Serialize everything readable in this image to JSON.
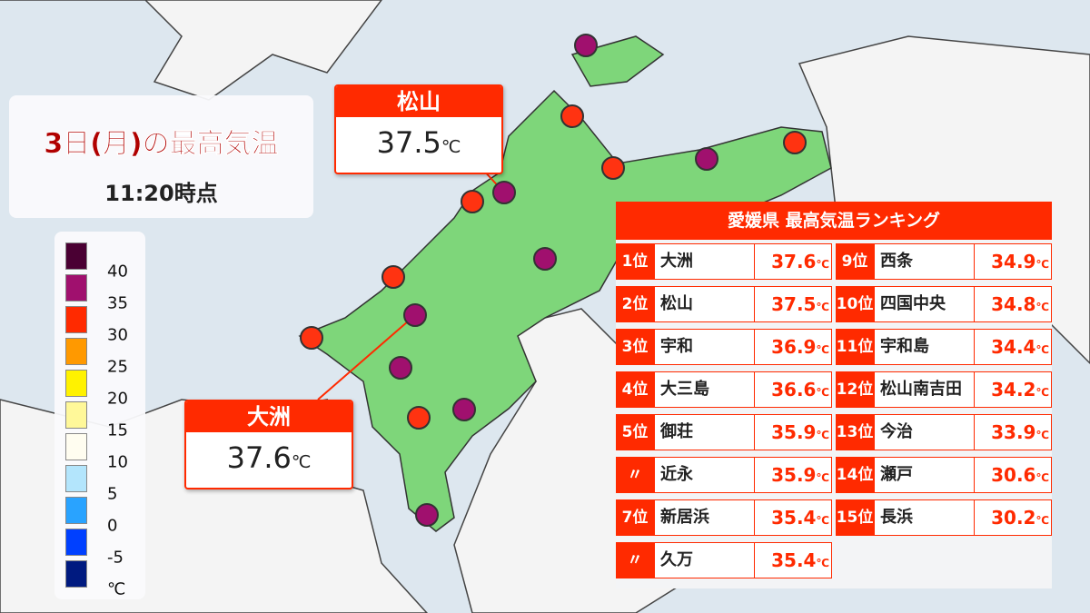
{
  "title": "3日(月)の最高気温",
  "subtitle": "11:20時点",
  "legend": {
    "colors": [
      "#4a0033",
      "#a0106e",
      "#ff2a00",
      "#ff9900",
      "#fff200",
      "#fff899",
      "#fffdf0",
      "#b3e5fc",
      "#29a3ff",
      "#0040ff",
      "#001a80"
    ],
    "labels": [
      40,
      35,
      30,
      25,
      20,
      15,
      10,
      5,
      0,
      -5
    ],
    "unit": "℃"
  },
  "callouts": [
    {
      "name": "松山",
      "value": 37.5,
      "unit": "℃"
    },
    {
      "name": "大洲",
      "value": 37.6,
      "unit": "℃"
    }
  ],
  "ranking": {
    "title": "愛媛県 最高気温ランキング",
    "rows": [
      {
        "rank": "1位",
        "name": "大洲",
        "value": 37.6,
        "unit": "℃"
      },
      {
        "rank": "2位",
        "name": "松山",
        "value": 37.5,
        "unit": "℃"
      },
      {
        "rank": "3位",
        "name": "宇和",
        "value": 36.9,
        "unit": "℃"
      },
      {
        "rank": "4位",
        "name": "大三島",
        "value": 36.6,
        "unit": "℃"
      },
      {
        "rank": "5位",
        "name": "御荘",
        "value": 35.9,
        "unit": "℃"
      },
      {
        "rank": "〃",
        "name": "近永",
        "value": 35.9,
        "unit": "℃"
      },
      {
        "rank": "7位",
        "name": "新居浜",
        "value": 35.4,
        "unit": "℃"
      },
      {
        "rank": "〃",
        "name": "久万",
        "value": 35.4,
        "unit": "℃"
      },
      {
        "rank": "9位",
        "name": "西条",
        "value": 34.9,
        "unit": "℃"
      },
      {
        "rank": "10位",
        "name": "四国中央",
        "value": 34.8,
        "unit": "℃"
      },
      {
        "rank": "11位",
        "name": "宇和島",
        "value": 34.4,
        "unit": "℃"
      },
      {
        "rank": "12位",
        "name": "松山南吉田",
        "value": 34.2,
        "unit": "℃"
      },
      {
        "rank": "13位",
        "name": "今治",
        "value": 33.9,
        "unit": "℃"
      },
      {
        "rank": "14位",
        "name": "瀬戸",
        "value": 30.6,
        "unit": "℃"
      },
      {
        "rank": "15位",
        "name": "長浜",
        "value": 30.2,
        "unit": "℃"
      }
    ]
  }
}
